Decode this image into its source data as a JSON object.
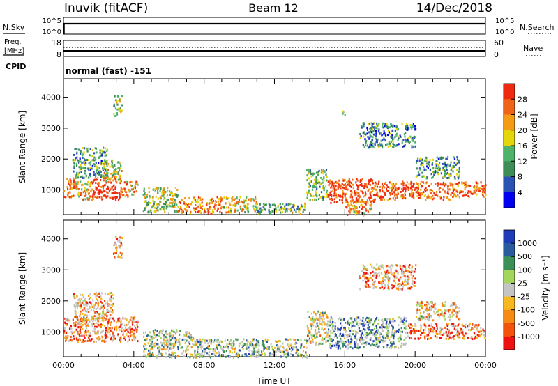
{
  "header": {
    "station": "Inuvik (fitACF)",
    "beam": "Beam 12",
    "date": "14/Dec/2018"
  },
  "sky_panel": {
    "left_label": "N.Sky",
    "left_ticks": [
      "10^5",
      "10^0"
    ],
    "right_label": "N.Search",
    "right_ticks": [
      "10^5",
      "10^0"
    ]
  },
  "freq_panel": {
    "left_label_lines": [
      "Freq.",
      "[MHz]"
    ],
    "left_ticks": [
      "18",
      "8"
    ],
    "right_label": "Nave",
    "right_ticks": [
      "60",
      "0"
    ]
  },
  "cpid": {
    "label": "CPID",
    "value": "normal (fast) -151"
  },
  "colors": {
    "power": [
      "#0000ee",
      "#2a52b5",
      "#3e8c58",
      "#4fb26a",
      "#e4d60c",
      "#f39a16",
      "#f06418",
      "#ee2a10"
    ],
    "velocity": [
      "#ee1111",
      "#f25410",
      "#f58b14",
      "#f6b81e",
      "#c4c4c4",
      "#a4d65e",
      "#3b8f57",
      "#2b5a9e",
      "#1f3cb8"
    ],
    "velocity_bins_top_to_bottom": [
      "#1f3cb8",
      "#2b5a9e",
      "#3b8f57",
      "#a4d65e",
      "#c4c4c4",
      "#f6b81e",
      "#f58b14",
      "#f25410",
      "#ee1111"
    ]
  },
  "chart_data": [
    {
      "type": "heatmap",
      "name": "power",
      "ylabel": "Slant Range [km]",
      "yticks": [
        "1000",
        "2000",
        "3000",
        "4000"
      ],
      "ylim": [
        200,
        4600
      ],
      "xlim": [
        0,
        24
      ],
      "colorbar": {
        "label": "Power [dB]",
        "ticks": [
          "28",
          "24",
          "20",
          "16",
          "12",
          "8",
          "4"
        ]
      },
      "regions": [
        {
          "hours": [
            0.0,
            0.6
          ],
          "range": [
            750,
            1400
          ],
          "level": 0.85
        },
        {
          "hours": [
            0.6,
            1.6
          ],
          "range": [
            700,
            1300
          ],
          "level": 0.65
        },
        {
          "hours": [
            1.6,
            3.2
          ],
          "range": [
            700,
            1400
          ],
          "level": 0.95
        },
        {
          "hours": [
            3.2,
            4.2
          ],
          "range": [
            800,
            1300
          ],
          "level": 0.7
        },
        {
          "hours": [
            0.5,
            2.5
          ],
          "range": [
            1400,
            2400
          ],
          "level": 0.35
        },
        {
          "hours": [
            2.2,
            3.3
          ],
          "range": [
            1300,
            2000
          ],
          "level": 0.55
        },
        {
          "hours": [
            2.8,
            3.3
          ],
          "range": [
            3400,
            4100
          ],
          "level": 0.45
        },
        {
          "hours": [
            4.5,
            6.5
          ],
          "range": [
            300,
            1100
          ],
          "level": 0.5
        },
        {
          "hours": [
            6.5,
            9.0
          ],
          "range": [
            250,
            800
          ],
          "level": 0.8
        },
        {
          "hours": [
            9.0,
            11.0
          ],
          "range": [
            300,
            800
          ],
          "level": 0.6
        },
        {
          "hours": [
            11.0,
            13.8
          ],
          "range": [
            250,
            600
          ],
          "level": 0.4
        },
        {
          "hours": [
            13.8,
            15.0
          ],
          "range": [
            700,
            1700
          ],
          "level": 0.45
        },
        {
          "hours": [
            15.0,
            18.0
          ],
          "range": [
            600,
            1400
          ],
          "level": 0.9
        },
        {
          "hours": [
            16.0,
            17.5
          ],
          "range": [
            200,
            700
          ],
          "level": 0.7
        },
        {
          "hours": [
            18.0,
            22.0
          ],
          "range": [
            700,
            1300
          ],
          "level": 0.85
        },
        {
          "hours": [
            20.0,
            22.5
          ],
          "range": [
            1400,
            2100
          ],
          "level": 0.35
        },
        {
          "hours": [
            22.0,
            24.0
          ],
          "range": [
            800,
            1300
          ],
          "level": 0.8
        },
        {
          "hours": [
            16.8,
            20.0
          ],
          "range": [
            2400,
            3200
          ],
          "level": 0.3
        },
        {
          "hours": [
            15.8,
            16.0
          ],
          "range": [
            3400,
            3700
          ],
          "level": 0.4
        }
      ]
    },
    {
      "type": "heatmap",
      "name": "velocity",
      "ylabel": "Slant Range [km]",
      "yticks": [
        "1000",
        "2000",
        "3000",
        "4000"
      ],
      "ylim": [
        200,
        4600
      ],
      "xlim": [
        0,
        24
      ],
      "xticks": [
        "00:00",
        "04:00",
        "08:00",
        "12:00",
        "16:00",
        "20:00",
        "00:00"
      ],
      "xlabel": "Time UT",
      "colorbar": {
        "label": "Velocity [m s⁻¹]",
        "ticks": [
          "1000",
          "500",
          "100",
          "25",
          "-25",
          "-100",
          "-500",
          "-1000"
        ]
      },
      "regions": [
        {
          "hours": [
            0.0,
            4.2
          ],
          "range": [
            700,
            1500
          ],
          "level": 0.25
        },
        {
          "hours": [
            0.5,
            2.8
          ],
          "range": [
            1400,
            2300
          ],
          "level": 0.3
        },
        {
          "hours": [
            2.8,
            3.3
          ],
          "range": [
            3400,
            4100
          ],
          "level": 0.3
        },
        {
          "hours": [
            4.5,
            7.5
          ],
          "range": [
            200,
            1100
          ],
          "level": 0.55
        },
        {
          "hours": [
            7.5,
            13.8
          ],
          "range": [
            200,
            800
          ],
          "level": 0.6
        },
        {
          "hours": [
            13.8,
            15.0
          ],
          "range": [
            600,
            1700
          ],
          "level": 0.5
        },
        {
          "hours": [
            15.0,
            19.5
          ],
          "range": [
            500,
            1500
          ],
          "level": 0.7
        },
        {
          "hours": [
            19.5,
            24.0
          ],
          "range": [
            800,
            1300
          ],
          "level": 0.22
        },
        {
          "hours": [
            16.8,
            20.0
          ],
          "range": [
            2400,
            3200
          ],
          "level": 0.3
        },
        {
          "hours": [
            20.0,
            22.5
          ],
          "range": [
            1400,
            2000
          ],
          "level": 0.4
        }
      ]
    }
  ]
}
